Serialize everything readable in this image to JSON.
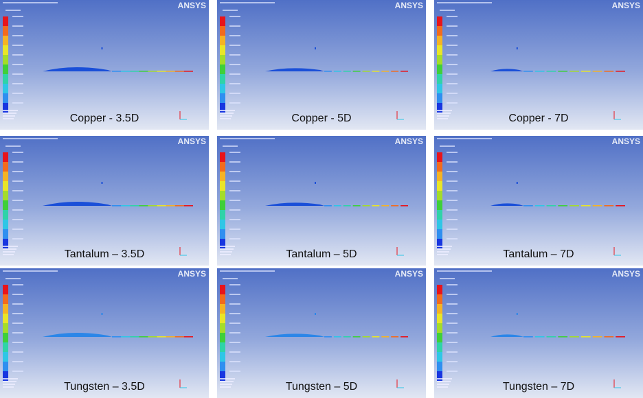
{
  "logo": "ANSYS",
  "panels": [
    {
      "caption": "Copper - 3.5D"
    },
    {
      "caption": "Copper - 5D"
    },
    {
      "caption": "Copper - 7D"
    },
    {
      "caption": "Tantalum – 3.5D"
    },
    {
      "caption": "Tantalum – 5D"
    },
    {
      "caption": "Tantalum – 7D"
    },
    {
      "caption": "Tungsten – 3.5D"
    },
    {
      "caption": "Tungsten – 5D"
    },
    {
      "caption": "Tungsten – 7D"
    }
  ]
}
